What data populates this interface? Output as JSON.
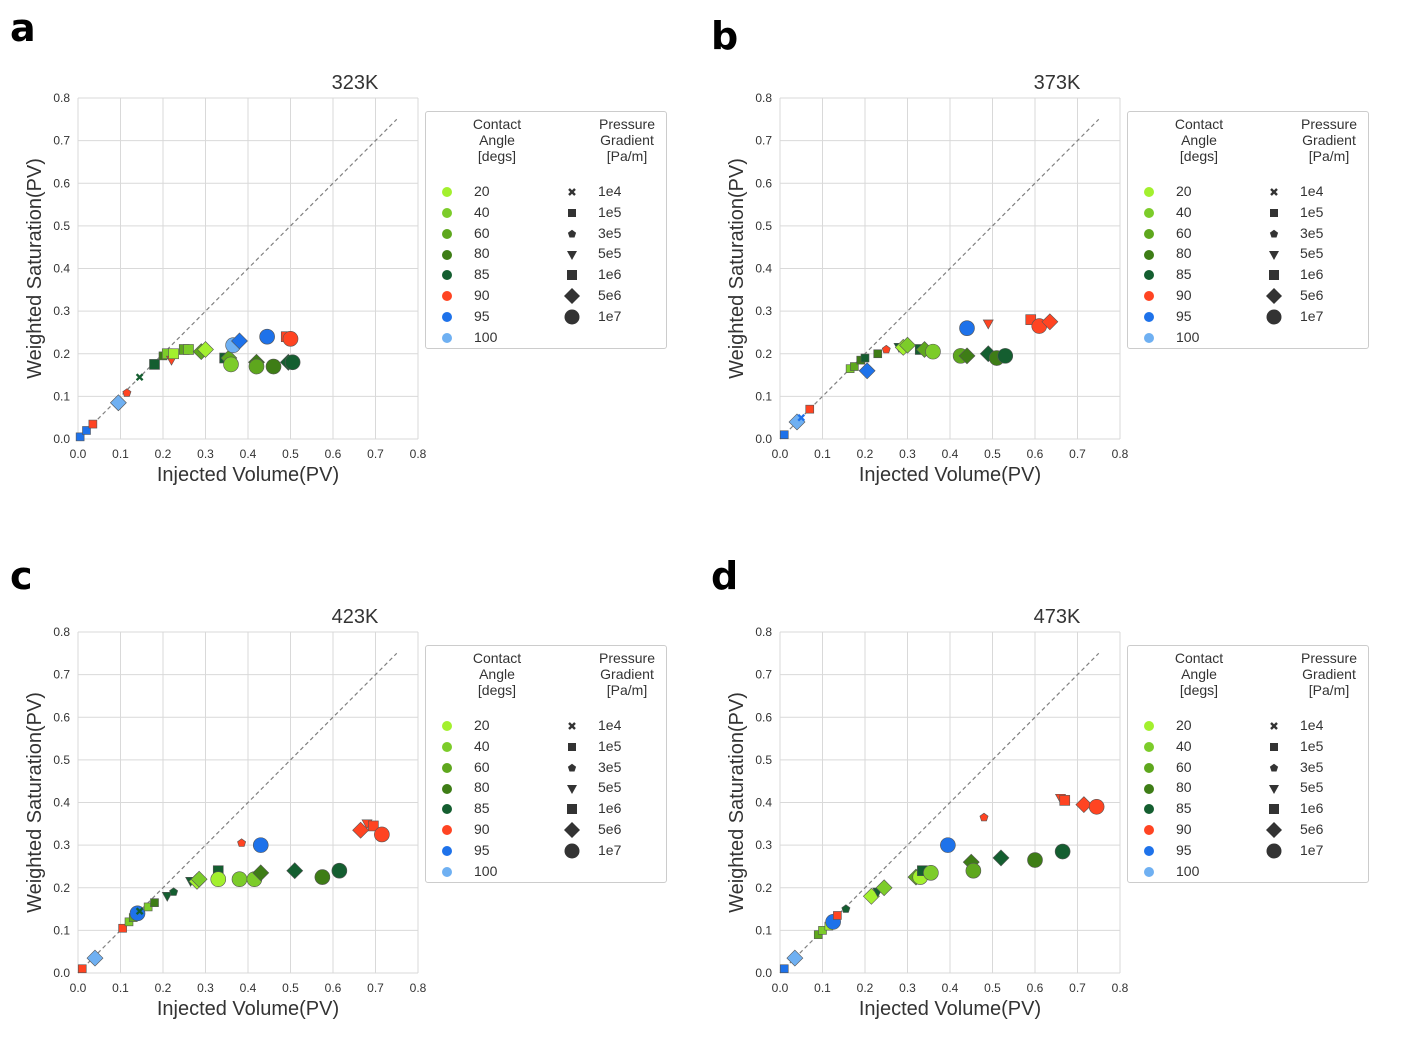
{
  "legend": {
    "contact_angle_title": [
      "Contact",
      "Angle",
      "[degs]"
    ],
    "pressure_title": [
      "Pressure",
      "Gradient",
      "[Pa/m]"
    ],
    "angles": [
      {
        "label": "20",
        "color": "#a3f02e"
      },
      {
        "label": "40",
        "color": "#7ccc2a"
      },
      {
        "label": "60",
        "color": "#5ea71d"
      },
      {
        "label": "80",
        "color": "#3e7d16"
      },
      {
        "label": "85",
        "color": "#145e30"
      },
      {
        "label": "90",
        "color": "#ff4422"
      },
      {
        "label": "95",
        "color": "#1e72ea"
      },
      {
        "label": "100",
        "color": "#6fb0f2"
      }
    ],
    "pressures": [
      {
        "label": "1e4",
        "marker": "x"
      },
      {
        "label": "1e5",
        "marker": "square"
      },
      {
        "label": "3e5",
        "marker": "pentagon"
      },
      {
        "label": "5e5",
        "marker": "triangle"
      },
      {
        "label": "1e6",
        "marker": "bigsquare"
      },
      {
        "label": "5e6",
        "marker": "diamond"
      },
      {
        "label": "1e7",
        "marker": "circle"
      }
    ]
  },
  "chart_data": [
    {
      "panel": "a",
      "type": "scatter",
      "title": "323K",
      "xlabel": "Injected Volume(PV)",
      "ylabel": "Weighted Saturation(PV)",
      "xlim": [
        0,
        0.8
      ],
      "ylim": [
        0,
        0.8
      ],
      "ticks": [
        "0.0",
        "0.1",
        "0.2",
        "0.3",
        "0.4",
        "0.5",
        "0.6",
        "0.7",
        "0.8"
      ],
      "reference_line": [
        [
          0,
          0
        ],
        [
          0.75,
          0.75
        ]
      ],
      "points": [
        {
          "x": 0.005,
          "y": 0.005,
          "angle": "95",
          "p": "1e5"
        },
        {
          "x": 0.02,
          "y": 0.02,
          "angle": "95",
          "p": "1e5"
        },
        {
          "x": 0.035,
          "y": 0.035,
          "angle": "90",
          "p": "1e5"
        },
        {
          "x": 0.095,
          "y": 0.085,
          "angle": "100",
          "p": "5e6"
        },
        {
          "x": 0.115,
          "y": 0.108,
          "angle": "90",
          "p": "3e5"
        },
        {
          "x": 0.145,
          "y": 0.145,
          "angle": "85",
          "p": "1e4"
        },
        {
          "x": 0.18,
          "y": 0.175,
          "angle": "85",
          "p": "1e6"
        },
        {
          "x": 0.2,
          "y": 0.195,
          "angle": "80",
          "p": "1e5"
        },
        {
          "x": 0.21,
          "y": 0.2,
          "angle": "40",
          "p": "1e6"
        },
        {
          "x": 0.22,
          "y": 0.185,
          "angle": "90",
          "p": "5e5"
        },
        {
          "x": 0.225,
          "y": 0.2,
          "angle": "20",
          "p": "1e6"
        },
        {
          "x": 0.25,
          "y": 0.21,
          "angle": "60",
          "p": "1e6"
        },
        {
          "x": 0.26,
          "y": 0.21,
          "angle": "40",
          "p": "1e6"
        },
        {
          "x": 0.29,
          "y": 0.205,
          "angle": "60",
          "p": "5e6"
        },
        {
          "x": 0.3,
          "y": 0.21,
          "angle": "20",
          "p": "5e6"
        },
        {
          "x": 0.345,
          "y": 0.19,
          "angle": "85",
          "p": "1e6"
        },
        {
          "x": 0.355,
          "y": 0.19,
          "angle": "60",
          "p": "5e6"
        },
        {
          "x": 0.36,
          "y": 0.175,
          "angle": "40",
          "p": "1e7"
        },
        {
          "x": 0.365,
          "y": 0.22,
          "angle": "100",
          "p": "1e7"
        },
        {
          "x": 0.38,
          "y": 0.23,
          "angle": "95",
          "p": "5e6"
        },
        {
          "x": 0.42,
          "y": 0.18,
          "angle": "80",
          "p": "5e6"
        },
        {
          "x": 0.42,
          "y": 0.17,
          "angle": "60",
          "p": "1e7"
        },
        {
          "x": 0.445,
          "y": 0.24,
          "angle": "95",
          "p": "1e7"
        },
        {
          "x": 0.46,
          "y": 0.17,
          "angle": "80",
          "p": "1e7"
        },
        {
          "x": 0.49,
          "y": 0.24,
          "angle": "90",
          "p": "1e6"
        },
        {
          "x": 0.495,
          "y": 0.18,
          "angle": "85",
          "p": "5e6"
        },
        {
          "x": 0.5,
          "y": 0.235,
          "angle": "90",
          "p": "1e7"
        },
        {
          "x": 0.505,
          "y": 0.18,
          "angle": "85",
          "p": "1e7"
        }
      ]
    },
    {
      "panel": "b",
      "type": "scatter",
      "title": "373K",
      "xlabel": "Injected Volume(PV)",
      "ylabel": "Weighted Saturation(PV)",
      "xlim": [
        0,
        0.8
      ],
      "ylim": [
        0,
        0.8
      ],
      "ticks": [
        "0.0",
        "0.1",
        "0.2",
        "0.3",
        "0.4",
        "0.5",
        "0.6",
        "0.7",
        "0.8"
      ],
      "reference_line": [
        [
          0,
          0
        ],
        [
          0.75,
          0.75
        ]
      ],
      "points": [
        {
          "x": 0.01,
          "y": 0.01,
          "angle": "95",
          "p": "1e5"
        },
        {
          "x": 0.04,
          "y": 0.04,
          "angle": "100",
          "p": "5e6"
        },
        {
          "x": 0.05,
          "y": 0.05,
          "angle": "95",
          "p": "1e4"
        },
        {
          "x": 0.07,
          "y": 0.07,
          "angle": "90",
          "p": "1e5"
        },
        {
          "x": 0.165,
          "y": 0.165,
          "angle": "40",
          "p": "1e5"
        },
        {
          "x": 0.175,
          "y": 0.17,
          "angle": "60",
          "p": "1e5"
        },
        {
          "x": 0.19,
          "y": 0.185,
          "angle": "80",
          "p": "1e5"
        },
        {
          "x": 0.2,
          "y": 0.19,
          "angle": "85",
          "p": "1e5"
        },
        {
          "x": 0.205,
          "y": 0.16,
          "angle": "95",
          "p": "5e6"
        },
        {
          "x": 0.23,
          "y": 0.2,
          "angle": "80",
          "p": "1e5"
        },
        {
          "x": 0.25,
          "y": 0.21,
          "angle": "90",
          "p": "3e5"
        },
        {
          "x": 0.28,
          "y": 0.215,
          "angle": "85",
          "p": "5e5"
        },
        {
          "x": 0.29,
          "y": 0.215,
          "angle": "20",
          "p": "5e6"
        },
        {
          "x": 0.3,
          "y": 0.22,
          "angle": "40",
          "p": "5e6"
        },
        {
          "x": 0.33,
          "y": 0.21,
          "angle": "85",
          "p": "1e6"
        },
        {
          "x": 0.34,
          "y": 0.21,
          "angle": "60",
          "p": "5e6"
        },
        {
          "x": 0.36,
          "y": 0.205,
          "angle": "40",
          "p": "1e7"
        },
        {
          "x": 0.425,
          "y": 0.195,
          "angle": "60",
          "p": "1e7"
        },
        {
          "x": 0.44,
          "y": 0.195,
          "angle": "80",
          "p": "5e6"
        },
        {
          "x": 0.44,
          "y": 0.26,
          "angle": "95",
          "p": "1e7"
        },
        {
          "x": 0.49,
          "y": 0.27,
          "angle": "90",
          "p": "5e5"
        },
        {
          "x": 0.49,
          "y": 0.2,
          "angle": "85",
          "p": "5e6"
        },
        {
          "x": 0.51,
          "y": 0.19,
          "angle": "80",
          "p": "1e7"
        },
        {
          "x": 0.53,
          "y": 0.195,
          "angle": "85",
          "p": "1e7"
        },
        {
          "x": 0.59,
          "y": 0.28,
          "angle": "90",
          "p": "1e6"
        },
        {
          "x": 0.61,
          "y": 0.265,
          "angle": "90",
          "p": "1e7"
        },
        {
          "x": 0.635,
          "y": 0.275,
          "angle": "90",
          "p": "5e6"
        }
      ]
    },
    {
      "panel": "c",
      "type": "scatter",
      "title": "423K",
      "xlabel": "Injected Volume(PV)",
      "ylabel": "Weighted Saturation(PV)",
      "xlim": [
        0,
        0.8
      ],
      "ylim": [
        0,
        0.8
      ],
      "ticks": [
        "0.0",
        "0.1",
        "0.2",
        "0.3",
        "0.4",
        "0.5",
        "0.6",
        "0.7",
        "0.8"
      ],
      "reference_line": [
        [
          0,
          0
        ],
        [
          0.75,
          0.75
        ]
      ],
      "points": [
        {
          "x": 0.01,
          "y": 0.01,
          "angle": "90",
          "p": "1e5"
        },
        {
          "x": 0.04,
          "y": 0.035,
          "angle": "100",
          "p": "5e6"
        },
        {
          "x": 0.105,
          "y": 0.105,
          "angle": "90",
          "p": "1e5"
        },
        {
          "x": 0.12,
          "y": 0.12,
          "angle": "40",
          "p": "1e5"
        },
        {
          "x": 0.13,
          "y": 0.13,
          "angle": "60",
          "p": "1e5"
        },
        {
          "x": 0.14,
          "y": 0.14,
          "angle": "95",
          "p": "1e7"
        },
        {
          "x": 0.145,
          "y": 0.145,
          "angle": "85",
          "p": "1e4"
        },
        {
          "x": 0.165,
          "y": 0.155,
          "angle": "40",
          "p": "1e5"
        },
        {
          "x": 0.18,
          "y": 0.165,
          "angle": "80",
          "p": "1e5"
        },
        {
          "x": 0.21,
          "y": 0.18,
          "angle": "85",
          "p": "5e5"
        },
        {
          "x": 0.225,
          "y": 0.19,
          "angle": "85",
          "p": "3e5"
        },
        {
          "x": 0.265,
          "y": 0.215,
          "angle": "85",
          "p": "5e5"
        },
        {
          "x": 0.28,
          "y": 0.215,
          "angle": "20",
          "p": "5e6"
        },
        {
          "x": 0.285,
          "y": 0.22,
          "angle": "40",
          "p": "5e6"
        },
        {
          "x": 0.33,
          "y": 0.24,
          "angle": "85",
          "p": "1e6"
        },
        {
          "x": 0.33,
          "y": 0.22,
          "angle": "20",
          "p": "1e7"
        },
        {
          "x": 0.385,
          "y": 0.305,
          "angle": "90",
          "p": "3e5"
        },
        {
          "x": 0.38,
          "y": 0.22,
          "angle": "40",
          "p": "1e7"
        },
        {
          "x": 0.415,
          "y": 0.22,
          "angle": "40",
          "p": "1e7"
        },
        {
          "x": 0.43,
          "y": 0.235,
          "angle": "80",
          "p": "5e6"
        },
        {
          "x": 0.43,
          "y": 0.3,
          "angle": "95",
          "p": "1e7"
        },
        {
          "x": 0.51,
          "y": 0.24,
          "angle": "85",
          "p": "5e6"
        },
        {
          "x": 0.575,
          "y": 0.225,
          "angle": "80",
          "p": "1e7"
        },
        {
          "x": 0.615,
          "y": 0.24,
          "angle": "85",
          "p": "1e7"
        },
        {
          "x": 0.665,
          "y": 0.335,
          "angle": "90",
          "p": "5e6"
        },
        {
          "x": 0.68,
          "y": 0.35,
          "angle": "90",
          "p": "5e5"
        },
        {
          "x": 0.695,
          "y": 0.345,
          "angle": "90",
          "p": "1e6"
        },
        {
          "x": 0.715,
          "y": 0.325,
          "angle": "90",
          "p": "1e7"
        }
      ]
    },
    {
      "panel": "d",
      "type": "scatter",
      "title": "473K",
      "xlabel": "Injected Volume(PV)",
      "ylabel": "Weighted Saturation(PV)",
      "xlim": [
        0,
        0.8
      ],
      "ylim": [
        0,
        0.8
      ],
      "ticks": [
        "0.0",
        "0.1",
        "0.2",
        "0.3",
        "0.4",
        "0.5",
        "0.6",
        "0.7",
        "0.8"
      ],
      "reference_line": [
        [
          0,
          0
        ],
        [
          0.75,
          0.75
        ]
      ],
      "points": [
        {
          "x": 0.01,
          "y": 0.01,
          "angle": "95",
          "p": "1e5"
        },
        {
          "x": 0.035,
          "y": 0.035,
          "angle": "100",
          "p": "5e6"
        },
        {
          "x": 0.09,
          "y": 0.09,
          "angle": "60",
          "p": "1e5"
        },
        {
          "x": 0.1,
          "y": 0.1,
          "angle": "40",
          "p": "1e5"
        },
        {
          "x": 0.115,
          "y": 0.11,
          "angle": "20",
          "p": "1e5"
        },
        {
          "x": 0.125,
          "y": 0.12,
          "angle": "95",
          "p": "1e7"
        },
        {
          "x": 0.135,
          "y": 0.135,
          "angle": "90",
          "p": "1e5"
        },
        {
          "x": 0.155,
          "y": 0.15,
          "angle": "85",
          "p": "3e5"
        },
        {
          "x": 0.215,
          "y": 0.18,
          "angle": "20",
          "p": "5e6"
        },
        {
          "x": 0.23,
          "y": 0.19,
          "angle": "85",
          "p": "5e5"
        },
        {
          "x": 0.245,
          "y": 0.2,
          "angle": "40",
          "p": "5e6"
        },
        {
          "x": 0.32,
          "y": 0.225,
          "angle": "60",
          "p": "5e6"
        },
        {
          "x": 0.33,
          "y": 0.225,
          "angle": "20",
          "p": "1e7"
        },
        {
          "x": 0.335,
          "y": 0.24,
          "angle": "85",
          "p": "1e6"
        },
        {
          "x": 0.355,
          "y": 0.235,
          "angle": "40",
          "p": "1e7"
        },
        {
          "x": 0.395,
          "y": 0.3,
          "angle": "95",
          "p": "1e7"
        },
        {
          "x": 0.45,
          "y": 0.26,
          "angle": "80",
          "p": "5e6"
        },
        {
          "x": 0.455,
          "y": 0.24,
          "angle": "60",
          "p": "1e7"
        },
        {
          "x": 0.48,
          "y": 0.365,
          "angle": "90",
          "p": "3e5"
        },
        {
          "x": 0.52,
          "y": 0.27,
          "angle": "85",
          "p": "5e6"
        },
        {
          "x": 0.6,
          "y": 0.265,
          "angle": "80",
          "p": "1e7"
        },
        {
          "x": 0.66,
          "y": 0.41,
          "angle": "90",
          "p": "5e5"
        },
        {
          "x": 0.665,
          "y": 0.285,
          "angle": "85",
          "p": "1e7"
        },
        {
          "x": 0.67,
          "y": 0.405,
          "angle": "90",
          "p": "1e6"
        },
        {
          "x": 0.715,
          "y": 0.395,
          "angle": "90",
          "p": "5e6"
        },
        {
          "x": 0.745,
          "y": 0.39,
          "angle": "90",
          "p": "1e7"
        }
      ]
    }
  ]
}
